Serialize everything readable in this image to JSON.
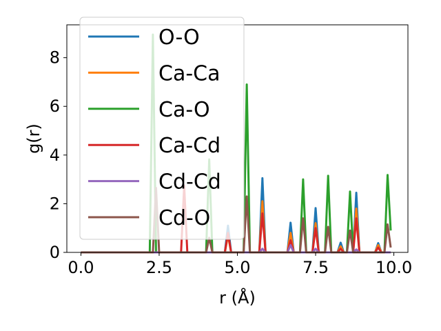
{
  "chart_data": {
    "type": "line",
    "title": "",
    "xlabel": "r (Å)",
    "ylabel": "g(r)",
    "xlim": [
      -0.45,
      10.45
    ],
    "ylim": [
      0,
      9.35
    ],
    "xticks": [
      0.0,
      2.5,
      5.0,
      7.5,
      10.0
    ],
    "xtick_labels": [
      "0.0",
      "2.5",
      "5.0",
      "7.5",
      "10.0"
    ],
    "yticks": [
      0,
      2,
      4,
      6,
      8
    ],
    "ytick_labels": [
      "0",
      "2",
      "4",
      "6",
      "8"
    ],
    "grid": false,
    "legend_position": "upper-left",
    "x": [
      0.0,
      0.1,
      0.2,
      0.3,
      0.4,
      0.5,
      0.6,
      0.7,
      0.8,
      0.9,
      1.0,
      1.1,
      1.2,
      1.3,
      1.4,
      1.5,
      1.6,
      1.7,
      1.8,
      1.9,
      2.0,
      2.1,
      2.2,
      2.3,
      2.4,
      2.5,
      2.6,
      2.7,
      2.8,
      2.9,
      3.0,
      3.1,
      3.2,
      3.3,
      3.4,
      3.5,
      3.6,
      3.7,
      3.8,
      3.9,
      4.0,
      4.1,
      4.2,
      4.3,
      4.4,
      4.5,
      4.6,
      4.7,
      4.8,
      4.9,
      5.0,
      5.1,
      5.2,
      5.3,
      5.4,
      5.5,
      5.6,
      5.7,
      5.8,
      5.9,
      6.0,
      6.1,
      6.2,
      6.3,
      6.4,
      6.5,
      6.6,
      6.7,
      6.8,
      6.9,
      7.0,
      7.1,
      7.2,
      7.3,
      7.4,
      7.5,
      7.6,
      7.7,
      7.8,
      7.9,
      8.0,
      8.1,
      8.2,
      8.3,
      8.4,
      8.5,
      8.6,
      8.7,
      8.8,
      8.9,
      9.0,
      9.1,
      9.2,
      9.3,
      9.4,
      9.5,
      9.6,
      9.7,
      9.8,
      9.9
    ],
    "series": [
      {
        "name": "O-O",
        "color": "#1f77b4",
        "values": [
          0,
          0,
          0,
          0,
          0,
          0,
          0,
          0,
          0,
          0,
          0,
          0,
          0,
          0,
          0,
          0,
          0,
          0,
          0,
          0,
          0,
          0,
          0,
          0,
          0,
          0,
          0,
          0,
          0,
          0,
          0,
          0,
          0,
          0,
          0,
          0,
          0,
          0,
          0,
          0,
          0,
          0,
          0,
          0,
          0,
          0,
          0,
          1.1,
          0,
          0,
          0,
          0,
          0,
          0,
          0,
          0,
          0,
          0,
          3.05,
          0,
          0,
          0,
          0,
          0,
          0,
          0,
          0,
          1.22,
          0,
          0,
          0,
          0,
          0,
          0,
          0,
          1.82,
          0,
          0,
          0,
          0,
          0,
          0,
          0,
          0.4,
          0,
          0,
          0,
          0,
          2.45,
          0,
          0,
          0,
          0,
          0,
          0,
          0.38,
          0,
          0,
          0,
          0
        ]
      },
      {
        "name": "Ca-Ca",
        "color": "#ff7f0e",
        "values": [
          0,
          0,
          0,
          0,
          0,
          0,
          0,
          0,
          0,
          0,
          0,
          0,
          0,
          0,
          0,
          0,
          0,
          0,
          0,
          0,
          0,
          0,
          0,
          0,
          0,
          0,
          0,
          0,
          0,
          0,
          0,
          0,
          0,
          0,
          0,
          0,
          0,
          0,
          0,
          0,
          0,
          0,
          0,
          0,
          0,
          0,
          0,
          0.7,
          0,
          0,
          0,
          0,
          0,
          0,
          0,
          0,
          0,
          0,
          2.1,
          0,
          0,
          0,
          0,
          0,
          0,
          0,
          0,
          0.8,
          0,
          0,
          0,
          0,
          0,
          0,
          0,
          1.2,
          0,
          0,
          0,
          0,
          0,
          0,
          0,
          0.25,
          0,
          0,
          0,
          0,
          1.8,
          0,
          0,
          0,
          0,
          0,
          0,
          0.3,
          0,
          0,
          0,
          0
        ]
      },
      {
        "name": "Ca-O",
        "color": "#2ca02c",
        "values": [
          0,
          0,
          0,
          0,
          0,
          0,
          0,
          0,
          0,
          0,
          0,
          0,
          0,
          0,
          0,
          0,
          0,
          0,
          0,
          0,
          0,
          0,
          0,
          8.95,
          0,
          0,
          0,
          0,
          0,
          0,
          0,
          0,
          0,
          0,
          0,
          0,
          0,
          0,
          0,
          0,
          0,
          3.82,
          0,
          0,
          0,
          0,
          0,
          0,
          0,
          0,
          0,
          0,
          0,
          6.9,
          0,
          0,
          0,
          0,
          0,
          0,
          0,
          0,
          0,
          0,
          0,
          0,
          0,
          0,
          0,
          0,
          0,
          3.0,
          0,
          0,
          0,
          0,
          0,
          0,
          0,
          3.15,
          0,
          0,
          0,
          0,
          0,
          0,
          2.5,
          0,
          0,
          0,
          0,
          0,
          0,
          0,
          0,
          0,
          0,
          0,
          3.18,
          0.9
        ]
      },
      {
        "name": "Ca-Cd",
        "color": "#d62728",
        "values": [
          0,
          0,
          0,
          0,
          0,
          0,
          0,
          0,
          0,
          0,
          0,
          0,
          0,
          0,
          0,
          0,
          0,
          0,
          0,
          0,
          0,
          0,
          0,
          0,
          0,
          0,
          0,
          0,
          0,
          0,
          0,
          0,
          0,
          2.75,
          0,
          0,
          0,
          0,
          0,
          0,
          0,
          0,
          0,
          0,
          0,
          0,
          0,
          0.8,
          0,
          0,
          0,
          0,
          0,
          0,
          0,
          0,
          0,
          0,
          1.6,
          0,
          0,
          0,
          0,
          0,
          0,
          0,
          0,
          0.5,
          0,
          0,
          0,
          0,
          0,
          0,
          0,
          1.0,
          0,
          0,
          0,
          0,
          0,
          0,
          0,
          0.15,
          0,
          0,
          0,
          0,
          1.4,
          0,
          0,
          0,
          0,
          0,
          0,
          0.2,
          0,
          0,
          0,
          0
        ]
      },
      {
        "name": "Cd-Cd",
        "color": "#9467bd",
        "values": [
          0,
          0,
          0,
          0,
          0,
          0,
          0,
          0,
          0,
          0,
          0,
          0,
          0,
          0,
          0,
          0,
          0,
          0,
          0,
          0,
          0,
          0,
          0,
          0,
          0,
          0,
          0,
          0,
          0,
          0,
          0,
          0,
          0,
          0,
          0,
          0,
          0,
          0,
          0,
          0,
          0,
          0,
          0,
          0,
          0,
          0,
          0,
          0,
          0,
          0,
          0,
          0,
          0,
          0,
          0,
          0,
          0,
          0,
          0.15,
          0,
          0,
          0,
          0,
          0,
          0,
          0,
          0,
          0.3,
          0,
          0,
          0,
          0,
          0,
          0,
          0,
          0.15,
          0,
          0,
          0,
          0,
          0,
          0,
          0,
          0,
          0,
          0,
          0,
          0,
          0.12,
          0,
          0,
          0,
          0,
          0,
          0,
          0,
          0,
          0,
          0,
          0
        ]
      },
      {
        "name": "Cd-O",
        "color": "#8c564b",
        "values": [
          0,
          0,
          0,
          0,
          0,
          0,
          0,
          0,
          0,
          0,
          0,
          0,
          0,
          0,
          0,
          0,
          0,
          0,
          0,
          0,
          0,
          0,
          0,
          0,
          2.65,
          0,
          0,
          0,
          0,
          0,
          0,
          0,
          0,
          0,
          0,
          0,
          0,
          0,
          0,
          0,
          0,
          0.6,
          0,
          0,
          0,
          0,
          0,
          0,
          0,
          0,
          0,
          0,
          0,
          2.3,
          0,
          0,
          0,
          0,
          0,
          0,
          0,
          0,
          0,
          0,
          0,
          0,
          0,
          0,
          0,
          0,
          0,
          1.4,
          0,
          0,
          0,
          0,
          0,
          0,
          0,
          1.05,
          0,
          0,
          0,
          0,
          0,
          0,
          0.9,
          0,
          0,
          0,
          0,
          0,
          0,
          0,
          0,
          0,
          0,
          0,
          1.15,
          0.2
        ]
      }
    ]
  }
}
